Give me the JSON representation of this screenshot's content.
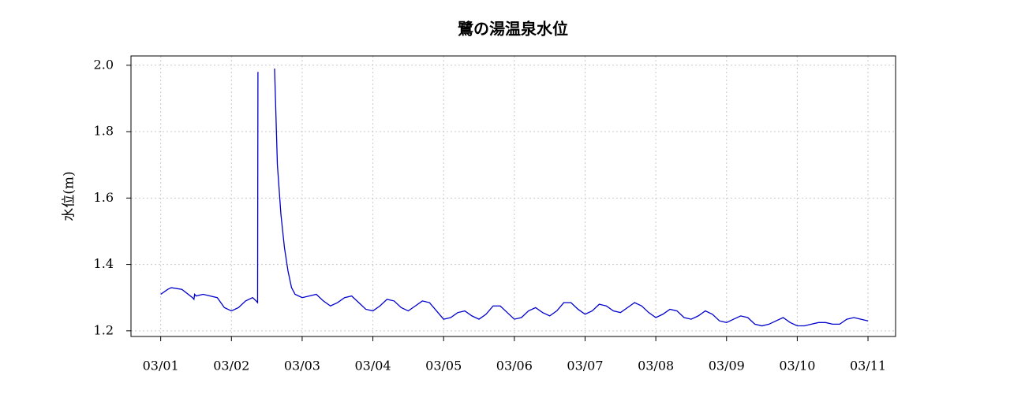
{
  "chart_data": {
    "type": "line",
    "title": "鷺の湯温泉水位",
    "y_label": "水位(m)",
    "x": [
      0,
      0.1,
      0.15,
      0.3,
      0.45,
      0.47,
      0.48,
      0.5,
      0.6,
      0.8,
      0.9,
      1.0,
      1.1,
      1.2,
      1.3,
      1.35,
      1.37,
      1.375,
      1.39,
      1.61,
      1.65,
      1.7,
      1.75,
      1.8,
      1.85,
      1.9,
      2.0,
      2.1,
      2.2,
      2.3,
      2.4,
      2.5,
      2.6,
      2.7,
      2.8,
      2.9,
      3.0,
      3.1,
      3.2,
      3.3,
      3.4,
      3.5,
      3.6,
      3.7,
      3.8,
      3.9,
      4.0,
      4.1,
      4.2,
      4.3,
      4.4,
      4.5,
      4.6,
      4.7,
      4.8,
      4.9,
      5.0,
      5.1,
      5.2,
      5.3,
      5.4,
      5.5,
      5.6,
      5.7,
      5.8,
      5.9,
      6.0,
      6.1,
      6.2,
      6.3,
      6.4,
      6.5,
      6.6,
      6.7,
      6.8,
      6.9,
      7.0,
      7.1,
      7.2,
      7.3,
      7.4,
      7.5,
      7.6,
      7.7,
      7.8,
      7.9,
      8.0,
      8.1,
      8.2,
      8.3,
      8.4,
      8.5,
      8.6,
      8.7,
      8.8,
      8.9,
      9.0,
      9.1,
      9.2,
      9.3,
      9.4,
      9.5,
      9.6,
      9.7,
      9.8,
      9.9,
      10.0
    ],
    "values": [
      1.31,
      1.325,
      1.33,
      1.325,
      1.3,
      1.295,
      1.31,
      1.305,
      1.31,
      1.3,
      1.27,
      1.26,
      1.27,
      1.29,
      1.3,
      1.29,
      1.285,
      1.98,
      null,
      1.99,
      1.7,
      1.55,
      1.45,
      1.38,
      1.33,
      1.31,
      1.3,
      1.305,
      1.31,
      1.29,
      1.275,
      1.285,
      1.3,
      1.305,
      1.285,
      1.265,
      1.26,
      1.275,
      1.295,
      1.29,
      1.27,
      1.26,
      1.275,
      1.29,
      1.285,
      1.26,
      1.235,
      1.24,
      1.255,
      1.26,
      1.245,
      1.235,
      1.25,
      1.275,
      1.275,
      1.255,
      1.235,
      1.24,
      1.26,
      1.27,
      1.255,
      1.245,
      1.26,
      1.285,
      1.285,
      1.265,
      1.25,
      1.26,
      1.28,
      1.275,
      1.26,
      1.255,
      1.27,
      1.285,
      1.275,
      1.255,
      1.24,
      1.25,
      1.265,
      1.26,
      1.24,
      1.235,
      1.245,
      1.26,
      1.25,
      1.23,
      1.225,
      1.235,
      1.245,
      1.24,
      1.22,
      1.215,
      1.22,
      1.23,
      1.24,
      1.225,
      1.215,
      1.215,
      1.22,
      1.225,
      1.225,
      1.22,
      1.22,
      1.235,
      1.24,
      1.235,
      1.23
    ],
    "color": "#0000cc",
    "xlim": [
      -0.42,
      10.39
    ],
    "xticks": [
      {
        "value": 0,
        "label": "03/01"
      },
      {
        "value": 1,
        "label": "03/02"
      },
      {
        "value": 2,
        "label": "03/03"
      },
      {
        "value": 3,
        "label": "03/04"
      },
      {
        "value": 4,
        "label": "03/05"
      },
      {
        "value": 5,
        "label": "03/06"
      },
      {
        "value": 6,
        "label": "03/07"
      },
      {
        "value": 7,
        "label": "03/08"
      },
      {
        "value": 8,
        "label": "03/09"
      },
      {
        "value": 9,
        "label": "03/10"
      },
      {
        "value": 10,
        "label": "03/11"
      }
    ],
    "ylim": [
      1.183,
      2.028
    ],
    "yticks": [
      {
        "value": 1.2,
        "label": "1.2"
      },
      {
        "value": 1.4,
        "label": "1.4"
      },
      {
        "value": 1.6,
        "label": "1.6"
      },
      {
        "value": 1.8,
        "label": "1.8"
      },
      {
        "value": 2.0,
        "label": "2.0"
      }
    ],
    "grid": true
  }
}
